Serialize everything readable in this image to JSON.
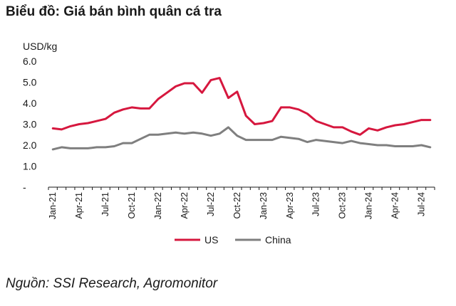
{
  "title": "Biểu đồ: Giá bán bình quân cá tra",
  "source": "Nguồn: SSI Research, Agromonitor",
  "chart_data": {
    "type": "line",
    "unit_label": "USD/kg",
    "ylim": [
      0,
      6
    ],
    "yticks": [
      {
        "value": 0,
        "label": "-"
      },
      {
        "value": 1,
        "label": "1.0"
      },
      {
        "value": 2,
        "label": "2.0"
      },
      {
        "value": 3,
        "label": "3.0"
      },
      {
        "value": 4,
        "label": "4.0"
      },
      {
        "value": 5,
        "label": "5.0"
      },
      {
        "value": 6,
        "label": "6.0"
      }
    ],
    "x": [
      "Jan-21",
      "Feb-21",
      "Mar-21",
      "Apr-21",
      "May-21",
      "Jun-21",
      "Jul-21",
      "Aug-21",
      "Sep-21",
      "Oct-21",
      "Nov-21",
      "Dec-21",
      "Jan-22",
      "Feb-22",
      "Mar-22",
      "Apr-22",
      "May-22",
      "Jun-22",
      "Jul-22",
      "Aug-22",
      "Sep-22",
      "Oct-22",
      "Nov-22",
      "Dec-22",
      "Jan-23",
      "Feb-23",
      "Mar-23",
      "Apr-23",
      "May-23",
      "Jun-23",
      "Jul-23",
      "Aug-23",
      "Sep-23",
      "Oct-23",
      "Nov-23",
      "Dec-23",
      "Jan-24",
      "Feb-24",
      "Mar-24",
      "Apr-24",
      "May-24",
      "Jun-24",
      "Jul-24",
      "Aug-24"
    ],
    "xtick_labels": [
      "Jan-21",
      "Apr-21",
      "Jul-21",
      "Oct-21",
      "Jan-22",
      "Apr-22",
      "Jul-22",
      "Oct-22",
      "Jan-23",
      "Apr-23",
      "Jul-23",
      "Oct-23",
      "Jan-24",
      "Apr-24",
      "Jul-24"
    ],
    "grid": false,
    "legend_position": "bottom",
    "series": [
      {
        "name": "US",
        "color": "#d6173e",
        "values": [
          2.8,
          2.75,
          2.9,
          3.0,
          3.05,
          3.15,
          3.25,
          3.55,
          3.7,
          3.8,
          3.75,
          3.75,
          4.2,
          4.5,
          4.8,
          4.95,
          4.95,
          4.5,
          5.1,
          5.2,
          4.25,
          4.55,
          3.4,
          3.0,
          3.05,
          3.15,
          3.8,
          3.8,
          3.7,
          3.5,
          3.15,
          3.0,
          2.85,
          2.85,
          2.65,
          2.5,
          2.8,
          2.7,
          2.85,
          2.95,
          3.0,
          3.1,
          3.2,
          3.2
        ]
      },
      {
        "name": "China",
        "color": "#7f7f7f",
        "values": [
          1.8,
          1.9,
          1.85,
          1.85,
          1.85,
          1.9,
          1.9,
          1.95,
          2.1,
          2.1,
          2.3,
          2.5,
          2.5,
          2.55,
          2.6,
          2.55,
          2.6,
          2.55,
          2.45,
          2.55,
          2.85,
          2.45,
          2.25,
          2.25,
          2.25,
          2.25,
          2.4,
          2.35,
          2.3,
          2.15,
          2.25,
          2.2,
          2.15,
          2.1,
          2.2,
          2.1,
          2.05,
          2.0,
          2.0,
          1.95,
          1.95,
          1.95,
          2.0,
          1.9
        ]
      }
    ]
  }
}
